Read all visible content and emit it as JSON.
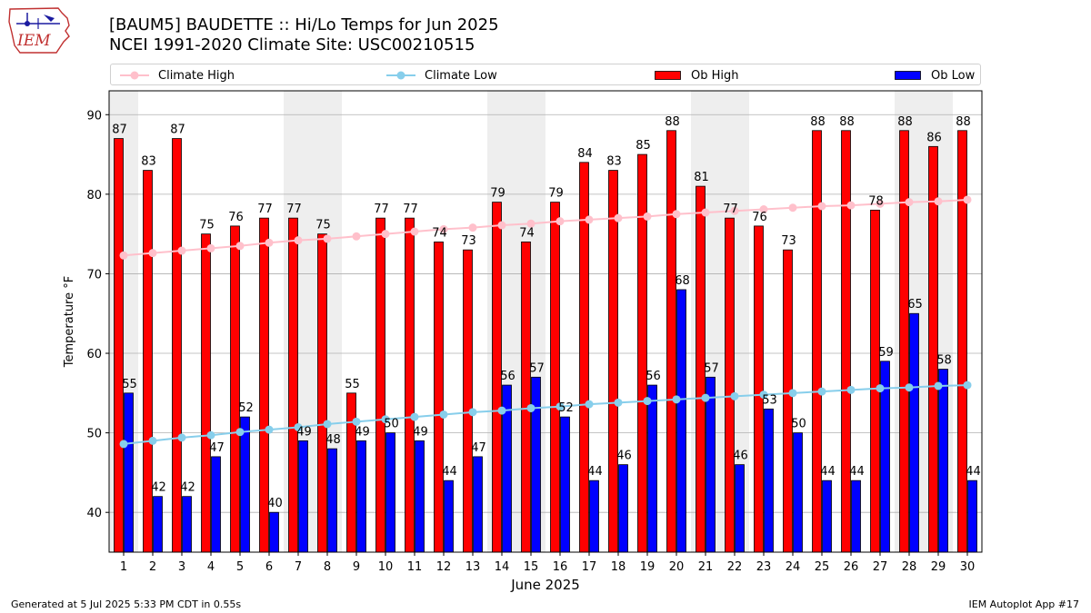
{
  "title_line1": "[BAUM5] BAUDETTE :: Hi/Lo Temps for Jun 2025",
  "title_line2": "NCEI 1991-2020 Climate Site: USC00210515",
  "logo_text": "IEM",
  "footer_left": "Generated at 5 Jul 2025 5:33 PM CDT in 0.55s",
  "footer_right": "IEM Autoplot App #17",
  "colors": {
    "climate_high": "#ffc0cb",
    "climate_low": "#87ceeb",
    "ob_high": "#ff0000",
    "ob_low": "#0000ff",
    "weekend_shade": "#eeeeee",
    "grid": "#b0b0b0"
  },
  "chart_data": {
    "type": "bar",
    "xlabel": "June 2025",
    "ylabel": "Temperature °F",
    "ylim": [
      35,
      93
    ],
    "yticks": [
      40,
      50,
      60,
      70,
      80,
      90
    ],
    "grid": "horizontal",
    "legend_placement": "top",
    "categories": [
      1,
      2,
      3,
      4,
      5,
      6,
      7,
      8,
      9,
      10,
      11,
      12,
      13,
      14,
      15,
      16,
      17,
      18,
      19,
      20,
      21,
      22,
      23,
      24,
      25,
      26,
      27,
      28,
      29,
      30
    ],
    "shaded_days": [
      1,
      7,
      8,
      14,
      15,
      21,
      22,
      28,
      29
    ],
    "series": [
      {
        "name": "Climate High",
        "kind": "line",
        "values": [
          72.3,
          72.6,
          72.9,
          73.2,
          73.5,
          73.9,
          74.2,
          74.4,
          74.7,
          75.0,
          75.3,
          75.6,
          75.8,
          76.1,
          76.3,
          76.6,
          76.8,
          77.0,
          77.2,
          77.5,
          77.7,
          77.9,
          78.1,
          78.3,
          78.5,
          78.6,
          78.8,
          79.0,
          79.1,
          79.3
        ]
      },
      {
        "name": "Climate Low",
        "kind": "line",
        "values": [
          48.6,
          49.0,
          49.4,
          49.7,
          50.1,
          50.4,
          50.7,
          51.1,
          51.4,
          51.7,
          52.0,
          52.3,
          52.6,
          52.8,
          53.1,
          53.3,
          53.6,
          53.8,
          54.0,
          54.2,
          54.4,
          54.6,
          54.8,
          55.0,
          55.2,
          55.4,
          55.6,
          55.7,
          55.9,
          56.0
        ]
      },
      {
        "name": "Ob High",
        "kind": "bar",
        "values": [
          87,
          83,
          87,
          75,
          76,
          77,
          77,
          75,
          55,
          77,
          77,
          74,
          73,
          79,
          74,
          79,
          84,
          83,
          85,
          88,
          81,
          77,
          76,
          73,
          88,
          88,
          78,
          88,
          86,
          88
        ]
      },
      {
        "name": "Ob Low",
        "kind": "bar",
        "values": [
          55,
          42,
          42,
          47,
          52,
          40,
          49,
          48,
          49,
          50,
          49,
          44,
          47,
          56,
          57,
          52,
          44,
          46,
          56,
          68,
          57,
          46,
          53,
          50,
          44,
          44,
          59,
          65,
          58,
          44
        ]
      }
    ]
  }
}
